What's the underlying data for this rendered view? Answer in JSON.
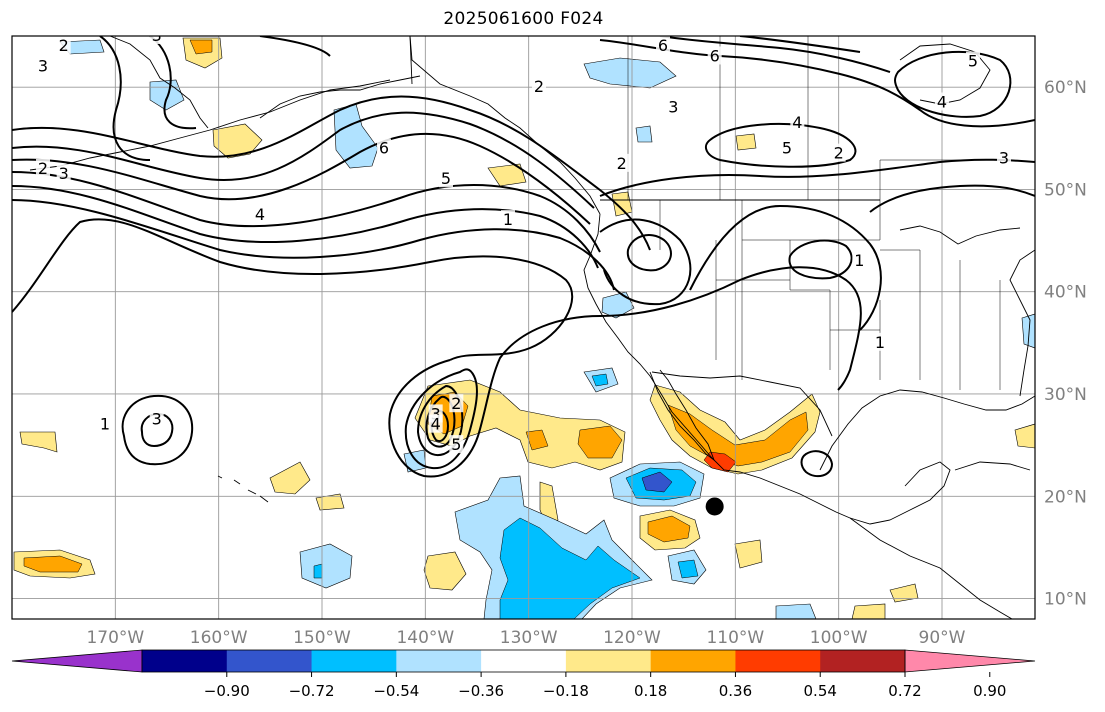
{
  "title": "2025061600 F024",
  "map": {
    "projection": "PlateCarree",
    "extent": {
      "lon_min": -180,
      "lon_max": -81,
      "lat_min": 8,
      "lat_max": 65
    },
    "lon_gridlines": [
      -170,
      -160,
      -150,
      -140,
      -130,
      -120,
      -110,
      -100,
      -90
    ],
    "lat_gridlines": [
      10,
      20,
      30,
      40,
      50,
      60
    ],
    "lon_labels": [
      "170°W",
      "160°W",
      "150°W",
      "140°W",
      "130°W",
      "120°W",
      "110°W",
      "100°W",
      "90°W"
    ],
    "lat_labels": [
      "10°N",
      "20°N",
      "30°N",
      "40°N",
      "50°N",
      "60°N"
    ],
    "marker": {
      "lon": -112,
      "lat": 19,
      "color": "#000000"
    },
    "contour_labels": [
      {
        "text": "2",
        "lon": -177,
        "lat": 52
      },
      {
        "text": "3",
        "lon": -175,
        "lat": 51.5
      },
      {
        "text": "4",
        "lon": -156,
        "lat": 47.5
      },
      {
        "text": "1",
        "lon": -132,
        "lat": 47
      },
      {
        "text": "5",
        "lon": -138,
        "lat": 51
      },
      {
        "text": "6",
        "lon": -144,
        "lat": 54
      },
      {
        "text": "2",
        "lon": -137,
        "lat": 29
      },
      {
        "text": "3",
        "lon": -139,
        "lat": 28
      },
      {
        "text": "4",
        "lon": -139,
        "lat": 27
      },
      {
        "text": "5",
        "lon": -137,
        "lat": 25
      },
      {
        "text": "1",
        "lon": -171,
        "lat": 27
      },
      {
        "text": "3",
        "lon": -166,
        "lat": 27.5
      },
      {
        "text": "2",
        "lon": -129,
        "lat": 60
      },
      {
        "text": "3",
        "lon": -116,
        "lat": 58
      },
      {
        "text": "6",
        "lon": -117,
        "lat": 64
      },
      {
        "text": "6",
        "lon": -112,
        "lat": 63
      },
      {
        "text": "5",
        "lon": -87,
        "lat": 62.5
      },
      {
        "text": "4",
        "lon": -104,
        "lat": 56.5
      },
      {
        "text": "5",
        "lon": -105,
        "lat": 54
      },
      {
        "text": "2",
        "lon": -100,
        "lat": 53.5
      },
      {
        "text": "4",
        "lon": -90,
        "lat": 58.5
      },
      {
        "text": "3",
        "lon": -84,
        "lat": 53
      },
      {
        "text": "2",
        "lon": -121,
        "lat": 52.5
      },
      {
        "text": "1",
        "lon": -98,
        "lat": 43
      },
      {
        "text": "1",
        "lon": -96,
        "lat": 35
      },
      {
        "text": "3",
        "lon": -166,
        "lat": 65
      },
      {
        "text": "3",
        "lon": -177,
        "lat": 62
      },
      {
        "text": "2",
        "lon": -175,
        "lat": 64
      }
    ]
  },
  "colorbar": {
    "colors": [
      "#9932cc",
      "#00008b",
      "#3355cc",
      "#00bfff",
      "#b0e2ff",
      "#ffffff",
      "#ffe98a",
      "#ffa500",
      "#ff3c00",
      "#b22222",
      "#ff88aa"
    ],
    "boundaries": [
      -0.9,
      -0.72,
      -0.54,
      -0.36,
      -0.18,
      0.18,
      0.36,
      0.54,
      0.72,
      0.9
    ],
    "tick_labels": [
      "−0.90",
      "−0.72",
      "−0.54",
      "−0.36",
      "−0.18",
      "0.18",
      "0.36",
      "0.54",
      "0.72",
      "0.90"
    ],
    "extend": "both"
  },
  "colors": {
    "gridline": "#999999",
    "coastline": "#000000",
    "contour": "#000000",
    "axis_label": "#808080"
  }
}
